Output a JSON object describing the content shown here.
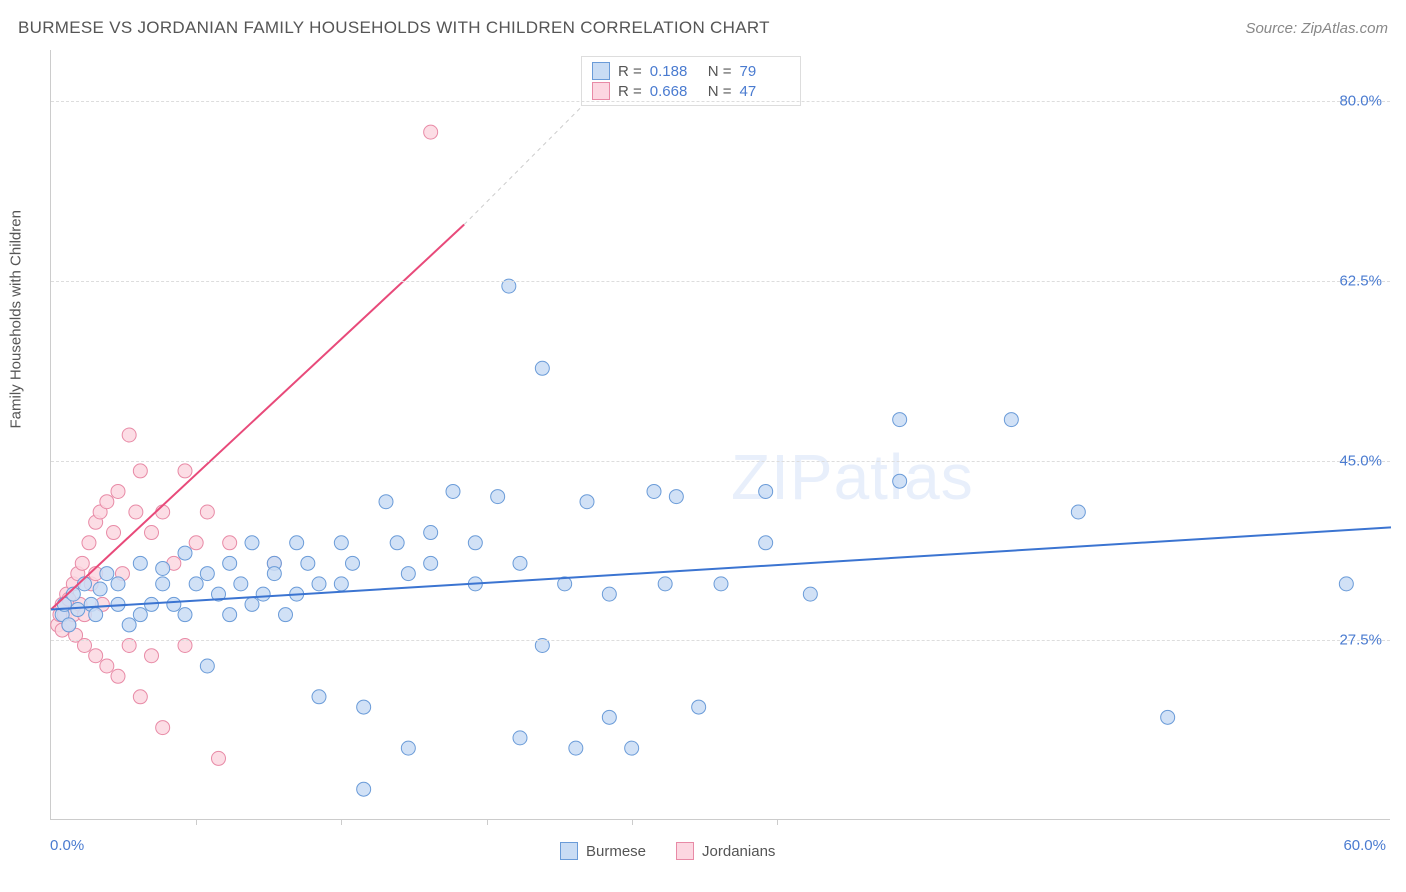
{
  "header": {
    "title": "BURMESE VS JORDANIAN FAMILY HOUSEHOLDS WITH CHILDREN CORRELATION CHART",
    "source": "Source: ZipAtlas.com"
  },
  "chart": {
    "type": "scatter",
    "y_axis_label": "Family Households with Children",
    "x_origin_label": "0.0%",
    "x_max_label": "60.0%",
    "xlim": [
      0,
      60
    ],
    "ylim": [
      10,
      85
    ],
    "y_ticks": [
      27.5,
      45.0,
      62.5,
      80.0
    ],
    "y_tick_labels": [
      "27.5%",
      "45.0%",
      "62.5%",
      "80.0%"
    ],
    "x_ticks": [
      6.5,
      13,
      19.5,
      26,
      32.5
    ],
    "background_color": "#ffffff",
    "grid_color": "#dddddd",
    "marker_radius": 7,
    "marker_stroke_width": 1,
    "watermark": "ZIPatlas",
    "series": [
      {
        "name": "Burmese",
        "fill_color": "#c9dcf4",
        "stroke_color": "#6a9bd8",
        "R": "0.188",
        "N": "79",
        "trend": {
          "x0": 0,
          "y0": 30.5,
          "x1": 60,
          "y1": 38.5,
          "color": "#3b74d1",
          "width": 2
        },
        "points": [
          [
            0.5,
            30
          ],
          [
            0.6,
            31
          ],
          [
            0.8,
            29
          ],
          [
            1,
            32
          ],
          [
            1.2,
            30.5
          ],
          [
            1.5,
            33
          ],
          [
            1.8,
            31
          ],
          [
            2,
            30
          ],
          [
            2.2,
            32.5
          ],
          [
            2.5,
            34
          ],
          [
            3,
            31
          ],
          [
            3,
            33
          ],
          [
            3.5,
            29
          ],
          [
            4,
            35
          ],
          [
            4,
            30
          ],
          [
            4.5,
            31
          ],
          [
            5,
            33
          ],
          [
            5,
            34.5
          ],
          [
            5.5,
            31
          ],
          [
            6,
            30
          ],
          [
            6,
            36
          ],
          [
            6.5,
            33
          ],
          [
            7,
            34
          ],
          [
            7,
            25
          ],
          [
            7.5,
            32
          ],
          [
            8,
            35
          ],
          [
            8,
            30
          ],
          [
            8.5,
            33
          ],
          [
            9,
            31
          ],
          [
            9,
            37
          ],
          [
            9.5,
            32
          ],
          [
            10,
            35
          ],
          [
            10,
            34
          ],
          [
            10.5,
            30
          ],
          [
            11,
            37
          ],
          [
            11,
            32
          ],
          [
            11.5,
            35
          ],
          [
            12,
            33
          ],
          [
            12,
            22
          ],
          [
            13,
            33
          ],
          [
            13,
            37
          ],
          [
            13.5,
            35
          ],
          [
            14,
            21
          ],
          [
            14,
            13
          ],
          [
            15,
            41
          ],
          [
            15.5,
            37
          ],
          [
            16,
            34
          ],
          [
            16,
            17
          ],
          [
            17,
            38
          ],
          [
            17,
            35
          ],
          [
            18,
            42
          ],
          [
            19,
            37
          ],
          [
            19,
            33
          ],
          [
            20,
            41.5
          ],
          [
            20.5,
            62
          ],
          [
            21,
            35
          ],
          [
            21,
            18
          ],
          [
            22,
            54
          ],
          [
            22,
            27
          ],
          [
            23,
            33
          ],
          [
            23.5,
            17
          ],
          [
            24,
            41
          ],
          [
            25,
            32
          ],
          [
            25,
            20
          ],
          [
            26,
            17
          ],
          [
            27,
            42
          ],
          [
            27.5,
            33
          ],
          [
            28,
            41.5
          ],
          [
            29,
            21
          ],
          [
            30,
            33
          ],
          [
            32,
            37
          ],
          [
            32,
            42
          ],
          [
            34,
            32
          ],
          [
            38,
            49
          ],
          [
            38,
            43
          ],
          [
            43,
            49
          ],
          [
            46,
            40
          ],
          [
            50,
            20
          ],
          [
            58,
            33
          ]
        ]
      },
      {
        "name": "Jordanians",
        "fill_color": "#fcd7e1",
        "stroke_color": "#e88aa6",
        "R": "0.668",
        "N": "47",
        "trend_solid": {
          "x0": 0,
          "y0": 30.5,
          "x1": 18.5,
          "y1": 68,
          "color": "#e84a7a",
          "width": 2
        },
        "trend_dashed": {
          "x0": 18.5,
          "y0": 68,
          "x1": 24,
          "y1": 80,
          "color": "#cccccc",
          "width": 1
        },
        "points": [
          [
            0.3,
            29
          ],
          [
            0.4,
            30
          ],
          [
            0.5,
            28.5
          ],
          [
            0.5,
            31
          ],
          [
            0.6,
            30
          ],
          [
            0.7,
            32
          ],
          [
            0.8,
            31.5
          ],
          [
            0.8,
            29
          ],
          [
            1,
            33
          ],
          [
            1,
            30
          ],
          [
            1.1,
            28
          ],
          [
            1.2,
            34
          ],
          [
            1.3,
            31
          ],
          [
            1.4,
            35
          ],
          [
            1.5,
            30
          ],
          [
            1.5,
            27
          ],
          [
            1.7,
            37
          ],
          [
            1.8,
            33
          ],
          [
            2,
            39
          ],
          [
            2,
            34
          ],
          [
            2,
            26
          ],
          [
            2.2,
            40
          ],
          [
            2.3,
            31
          ],
          [
            2.5,
            41
          ],
          [
            2.5,
            25
          ],
          [
            2.8,
            38
          ],
          [
            3,
            42
          ],
          [
            3,
            24
          ],
          [
            3.2,
            34
          ],
          [
            3.5,
            47.5
          ],
          [
            3.5,
            27
          ],
          [
            3.8,
            40
          ],
          [
            4,
            44
          ],
          [
            4,
            22
          ],
          [
            4.5,
            38
          ],
          [
            4.5,
            26
          ],
          [
            5,
            40
          ],
          [
            5,
            19
          ],
          [
            5.5,
            35
          ],
          [
            6,
            44
          ],
          [
            6,
            27
          ],
          [
            6.5,
            37
          ],
          [
            7,
            40
          ],
          [
            7.5,
            16
          ],
          [
            8,
            37
          ],
          [
            10,
            35
          ],
          [
            17,
            77
          ]
        ]
      }
    ]
  },
  "legend": {
    "top_rows": [
      {
        "swatch_fill": "#c9dcf4",
        "swatch_border": "#6a9bd8",
        "r_label": "R =",
        "r_val": "0.188",
        "n_label": "N =",
        "n_val": "79"
      },
      {
        "swatch_fill": "#fcd7e1",
        "swatch_border": "#e88aa6",
        "r_label": "R =",
        "r_val": "0.668",
        "n_label": "N =",
        "n_val": "47"
      }
    ],
    "bottom_items": [
      {
        "swatch_fill": "#c9dcf4",
        "swatch_border": "#6a9bd8",
        "label": "Burmese"
      },
      {
        "swatch_fill": "#fcd7e1",
        "swatch_border": "#e88aa6",
        "label": "Jordanians"
      }
    ]
  }
}
